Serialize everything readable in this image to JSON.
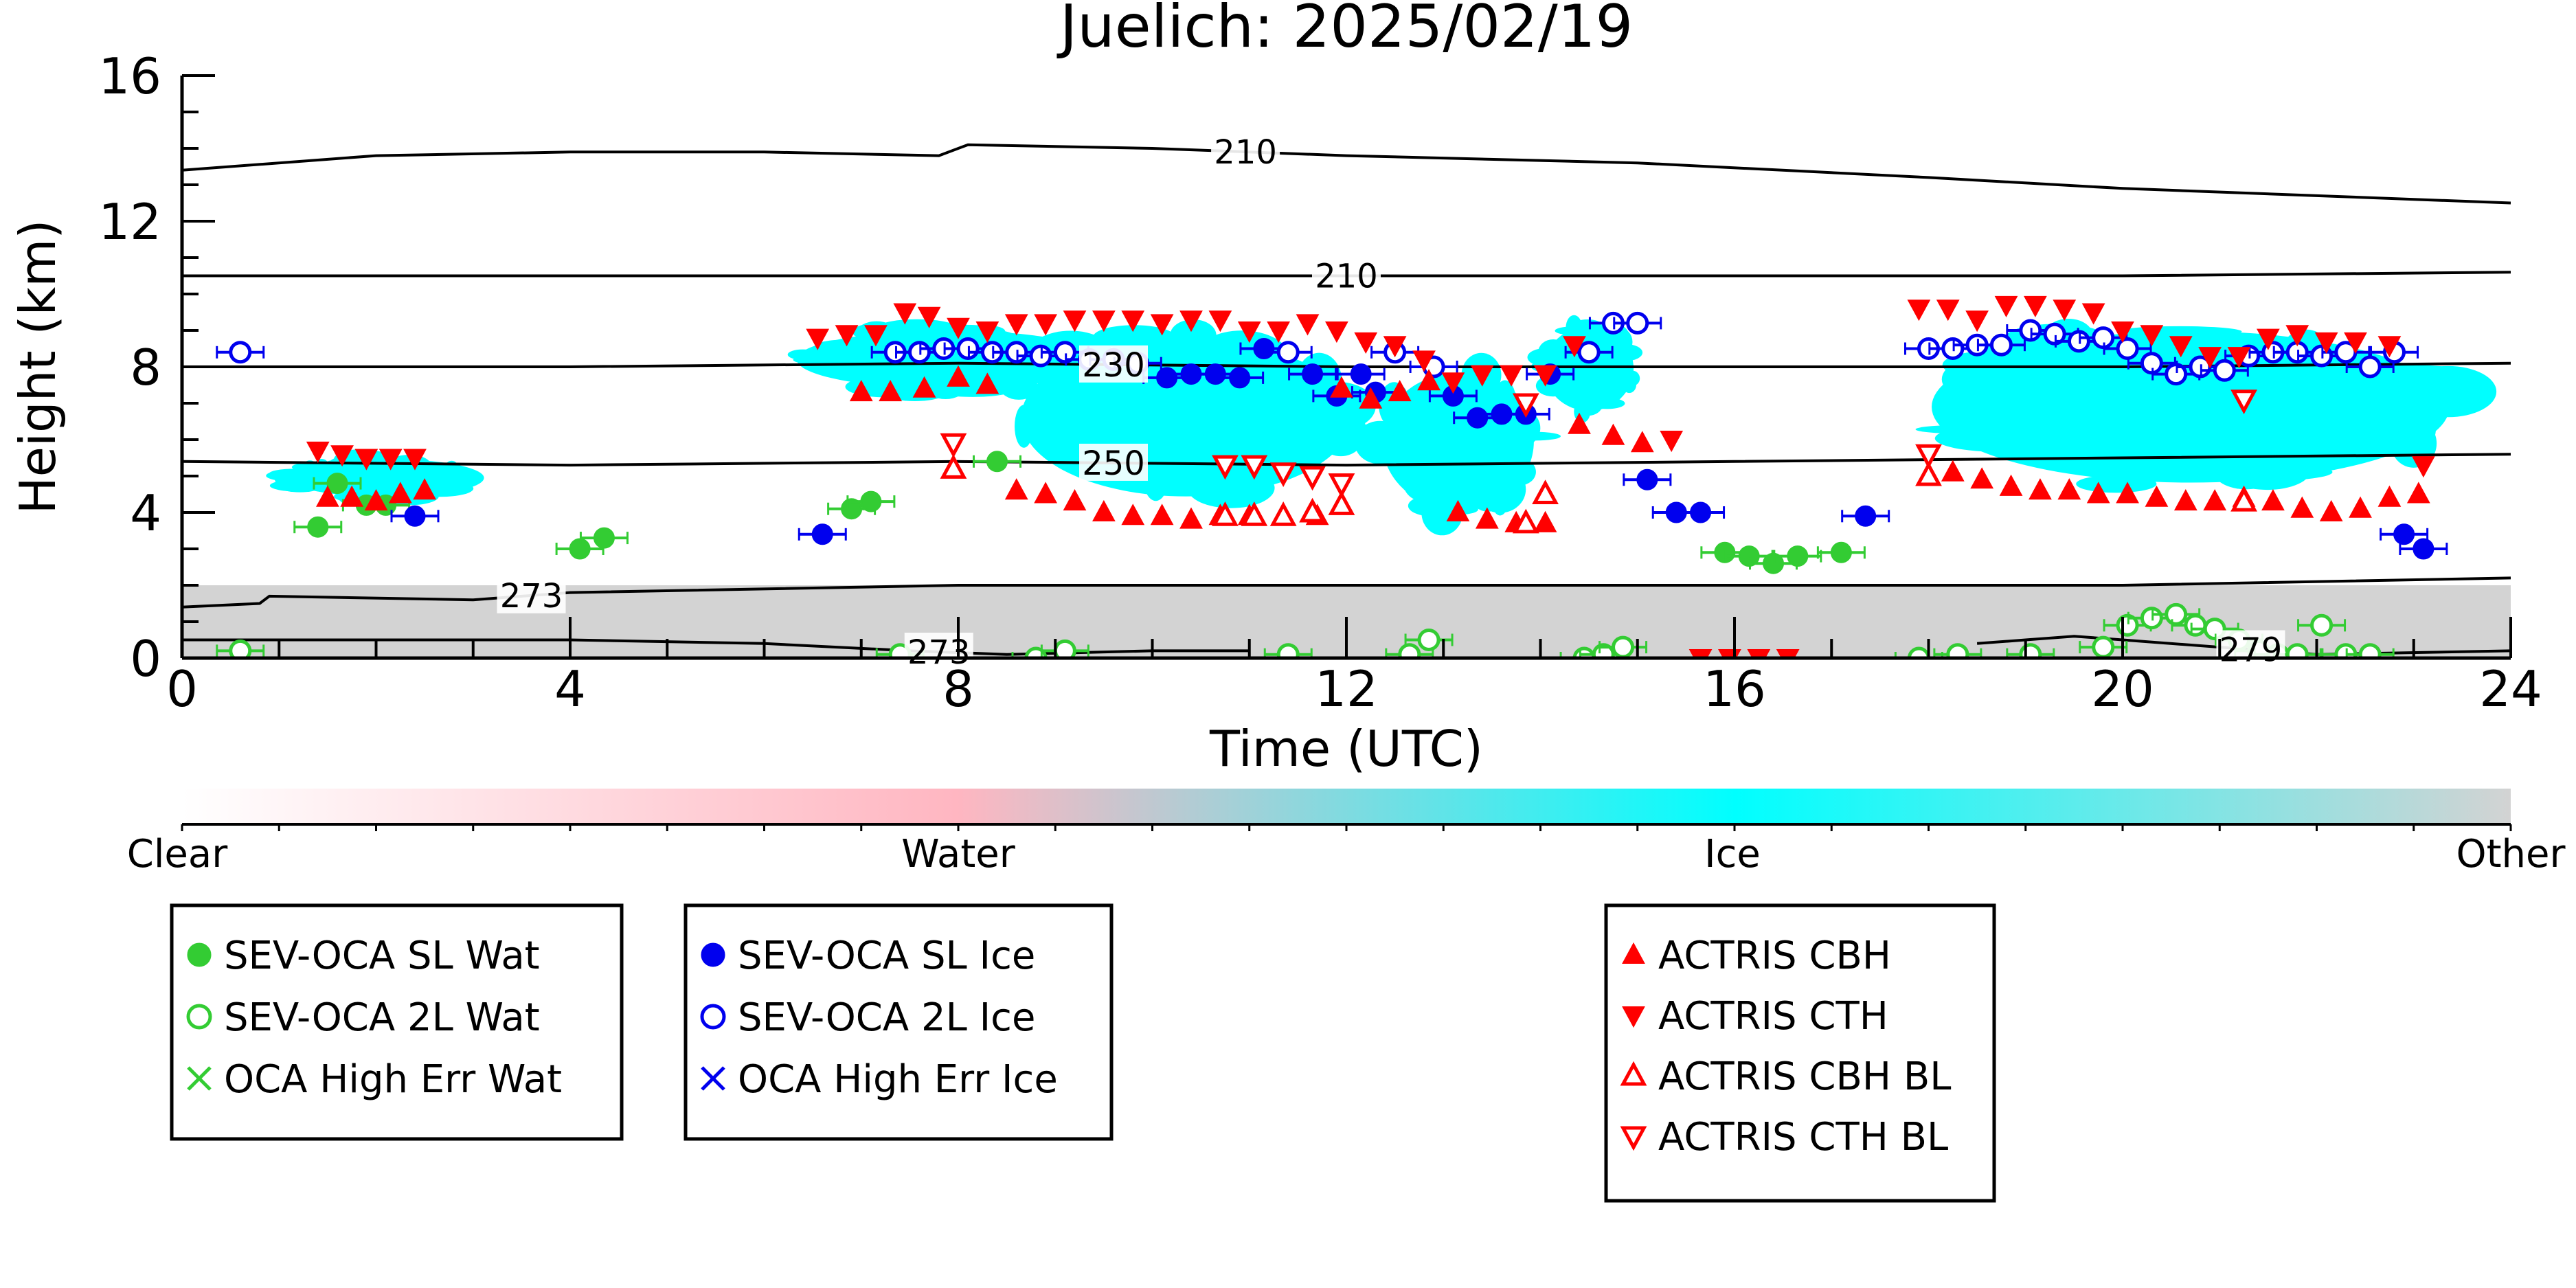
{
  "chart_data": {
    "type": "scatter",
    "title": "Juelich: 2025/02/19",
    "xlabel": "Time (UTC)",
    "ylabel": "Height (km)",
    "xlim": [
      0,
      24
    ],
    "ylim": [
      0,
      16
    ],
    "x_ticks": [
      0,
      4,
      8,
      12,
      16,
      20,
      24
    ],
    "y_ticks": [
      0,
      4,
      8,
      12,
      16
    ],
    "background_classification": {
      "colorbar_labels": [
        "Clear",
        "Water",
        "Ice",
        "Other"
      ],
      "colors": {
        "clear": "#ffffff",
        "water": "#ffb6c1",
        "ice": "#00ffff",
        "other": "#d3d3d3"
      },
      "ice_regions": [
        {
          "x": [
            1.0,
            3.2
          ],
          "y": [
            4.3,
            5.6
          ]
        },
        {
          "x": [
            6.2,
            9.6
          ],
          "y": [
            7.2,
            9.2
          ]
        },
        {
          "x": [
            8.5,
            12.2
          ],
          "y": [
            3.9,
            9.3
          ]
        },
        {
          "x": [
            12.3,
            14.0
          ],
          "y": [
            3.6,
            8.3
          ]
        },
        {
          "x": [
            14.0,
            15.0
          ],
          "y": [
            6.5,
            9.4
          ]
        },
        {
          "x": [
            17.8,
            23.6
          ],
          "y": [
            4.3,
            9.5
          ]
        }
      ],
      "other_region": {
        "x": [
          0,
          24
        ],
        "y": [
          0,
          2.0
        ]
      }
    },
    "temperature_contours": [
      {
        "label": "210",
        "x": [
          0,
          2,
          4,
          6,
          7.8,
          8.1,
          10,
          12,
          15,
          18,
          20,
          22,
          24
        ],
        "y": [
          13.4,
          13.8,
          13.9,
          13.9,
          13.8,
          14.1,
          14.0,
          13.8,
          13.6,
          13.2,
          12.9,
          12.7,
          12.5
        ]
      },
      {
        "label": "210",
        "x": [
          0,
          6,
          12,
          16,
          20,
          24
        ],
        "y": [
          10.5,
          10.5,
          10.5,
          10.5,
          10.5,
          10.6
        ]
      },
      {
        "label": "230",
        "x": [
          0,
          4,
          8,
          12,
          16,
          20,
          24
        ],
        "y": [
          8.0,
          8.0,
          8.1,
          8.0,
          8.0,
          8.0,
          8.1
        ]
      },
      {
        "label": "250",
        "x": [
          0,
          4,
          8,
          12,
          16,
          20,
          24
        ],
        "y": [
          5.4,
          5.3,
          5.4,
          5.3,
          5.4,
          5.5,
          5.6
        ]
      },
      {
        "label": "273",
        "x": [
          0,
          0.8,
          0.9,
          3.0,
          4.0,
          8.0,
          12.0,
          16.0,
          20.0,
          24.0
        ],
        "y": [
          1.4,
          1.5,
          1.7,
          1.6,
          1.8,
          2.0,
          2.0,
          2.0,
          2.0,
          2.2
        ]
      },
      {
        "label": "273",
        "x": [
          0,
          4,
          6,
          7.5,
          8.5,
          10,
          11
        ],
        "y": [
          0.5,
          0.5,
          0.4,
          0.2,
          0.1,
          0.2,
          0.2
        ]
      },
      {
        "label": "279",
        "x": [
          18.5,
          19.0,
          19.5,
          20.0,
          21.0,
          22.0,
          24.0
        ],
        "y": [
          0.4,
          0.5,
          0.6,
          0.5,
          0.3,
          0.1,
          0.2
        ]
      }
    ],
    "series": [
      {
        "name": "SEV-OCA SL Wat",
        "marker": "circle-filled",
        "color": "#33cc33",
        "x": [
          1.4,
          1.6,
          1.9,
          2.1,
          4.1,
          4.35,
          6.9,
          7.1,
          8.4,
          15.9,
          16.15,
          16.4,
          16.65,
          17.1
        ],
        "y": [
          3.6,
          4.8,
          4.2,
          4.2,
          3.0,
          3.3,
          4.1,
          4.3,
          5.4,
          2.9,
          2.8,
          2.6,
          2.8,
          2.9
        ]
      },
      {
        "name": "SEV-OCA 2L Wat",
        "marker": "circle-open",
        "color": "#33cc33",
        "x": [
          0.6,
          7.4,
          8.8,
          9.1,
          11.4,
          12.65,
          12.85,
          14.45,
          14.65,
          14.85,
          17.9,
          18.3,
          19.05,
          19.8,
          20.05,
          20.3,
          20.55,
          20.75,
          20.95,
          21.2,
          21.4,
          21.6,
          21.8,
          22.05,
          22.3,
          22.55
        ],
        "y": [
          0.2,
          0.1,
          0.0,
          0.2,
          0.1,
          0.1,
          0.5,
          0.0,
          0.1,
          0.3,
          0.0,
          0.1,
          0.1,
          0.3,
          0.9,
          1.1,
          1.2,
          0.9,
          0.8,
          0.5,
          0.2,
          0.1,
          0.1,
          0.9,
          0.1,
          0.1
        ]
      },
      {
        "name": "OCA High Err Wat",
        "marker": "x",
        "color": "#33cc33",
        "x": [],
        "y": []
      },
      {
        "name": "SEV-OCA SL Ice",
        "marker": "circle-filled",
        "color": "#0000ee",
        "x": [
          2.4,
          6.6,
          10.15,
          10.4,
          10.65,
          10.9,
          11.15,
          11.65,
          11.9,
          12.15,
          12.3,
          13.1,
          13.35,
          13.6,
          13.85,
          14.1,
          15.1,
          15.4,
          15.65,
          17.35,
          22.9,
          23.1
        ],
        "y": [
          3.9,
          3.4,
          7.7,
          7.8,
          7.8,
          7.7,
          8.5,
          7.8,
          7.2,
          7.8,
          7.3,
          7.2,
          6.6,
          6.7,
          6.7,
          7.8,
          4.9,
          4.0,
          4.0,
          3.9,
          3.4,
          3.0
        ]
      },
      {
        "name": "SEV-OCA 2L Ice",
        "marker": "circle-open",
        "color": "#0000ee",
        "x": [
          0.6,
          7.35,
          7.6,
          7.85,
          8.1,
          8.35,
          8.6,
          8.85,
          9.1,
          9.35,
          9.6,
          9.85,
          11.4,
          12.5,
          12.9,
          14.5,
          14.75,
          15.0,
          18.0,
          18.25,
          18.5,
          18.75,
          19.05,
          19.3,
          19.55,
          19.8,
          20.05,
          20.3,
          20.55,
          20.8,
          21.05,
          21.3,
          21.55,
          21.8,
          22.05,
          22.3,
          22.55,
          22.8
        ],
        "y": [
          8.4,
          8.4,
          8.4,
          8.5,
          8.5,
          8.4,
          8.4,
          8.3,
          8.4,
          8.2,
          8.2,
          8.1,
          8.4,
          8.4,
          8.0,
          8.4,
          9.2,
          9.2,
          8.5,
          8.5,
          8.6,
          8.6,
          9.0,
          8.9,
          8.7,
          8.8,
          8.5,
          8.1,
          7.8,
          8.0,
          7.9,
          8.3,
          8.4,
          8.4,
          8.3,
          8.4,
          8.0,
          8.4
        ]
      },
      {
        "name": "OCA High Err Ice",
        "marker": "x",
        "color": "#0000ee",
        "x": [],
        "y": []
      },
      {
        "name": "ACTRIS CBH",
        "marker": "triangle-up-filled",
        "color": "#ff0000",
        "x": [
          1.5,
          1.75,
          2.0,
          2.25,
          2.5,
          7.0,
          7.3,
          7.65,
          8.0,
          8.3,
          8.6,
          8.9,
          9.2,
          9.5,
          9.8,
          10.1,
          10.4,
          10.7,
          11.0,
          11.35,
          11.7,
          11.95,
          12.25,
          12.55,
          12.85,
          13.15,
          13.45,
          13.75,
          14.05,
          14.4,
          14.75,
          15.05,
          18.25,
          18.55,
          18.85,
          19.15,
          19.45,
          19.75,
          20.05,
          20.35,
          20.65,
          20.95,
          21.25,
          21.55,
          21.85,
          22.15,
          22.45,
          22.75,
          23.05
        ],
        "y": [
          4.4,
          4.4,
          4.3,
          4.5,
          4.6,
          7.3,
          7.3,
          7.4,
          7.7,
          7.5,
          4.6,
          4.5,
          4.3,
          4.0,
          3.9,
          3.9,
          3.8,
          3.9,
          3.9,
          3.9,
          3.9,
          7.4,
          7.1,
          7.3,
          7.6,
          4.0,
          3.8,
          3.7,
          3.7,
          6.4,
          6.1,
          5.9,
          5.1,
          4.9,
          4.7,
          4.6,
          4.6,
          4.5,
          4.5,
          4.4,
          4.3,
          4.3,
          4.4,
          4.3,
          4.1,
          4.0,
          4.1,
          4.4,
          4.5
        ]
      },
      {
        "name": "ACTRIS CTH",
        "marker": "triangle-down-filled",
        "color": "#ff0000",
        "x": [
          1.4,
          1.65,
          1.9,
          2.15,
          2.4,
          6.55,
          6.85,
          7.15,
          7.45,
          7.7,
          8.0,
          8.3,
          8.6,
          8.9,
          9.2,
          9.5,
          9.8,
          10.1,
          10.4,
          10.7,
          11.0,
          11.3,
          11.6,
          11.9,
          12.2,
          12.5,
          12.8,
          13.1,
          13.4,
          13.7,
          14.05,
          14.35,
          15.35,
          15.65,
          15.95,
          16.25,
          16.55,
          17.9,
          18.2,
          18.5,
          18.8,
          19.1,
          19.4,
          19.7,
          20.0,
          20.3,
          20.6,
          20.9,
          21.2,
          21.5,
          21.8,
          22.1,
          22.4,
          22.75,
          23.1
        ],
        "y": [
          5.7,
          5.6,
          5.5,
          5.5,
          5.5,
          8.8,
          8.9,
          8.9,
          9.5,
          9.4,
          9.1,
          9.0,
          9.2,
          9.2,
          9.3,
          9.3,
          9.3,
          9.2,
          9.3,
          9.3,
          9.0,
          9.0,
          9.2,
          9.0,
          8.7,
          8.6,
          8.2,
          7.6,
          7.8,
          7.8,
          7.8,
          8.6,
          6.0,
          0.0,
          0.0,
          0.0,
          0.0,
          9.6,
          9.6,
          9.3,
          9.7,
          9.7,
          9.6,
          9.5,
          9.0,
          8.9,
          8.6,
          8.3,
          8.3,
          8.8,
          8.9,
          8.7,
          8.7,
          8.6,
          5.3
        ]
      },
      {
        "name": "ACTRIS CBH BL",
        "marker": "triangle-up-open",
        "color": "#ff0000",
        "x": [
          7.95,
          10.75,
          11.05,
          11.35,
          11.65,
          11.95,
          13.85,
          14.05,
          18.0,
          21.25
        ],
        "y": [
          5.2,
          3.9,
          3.9,
          3.9,
          4.0,
          4.2,
          3.7,
          4.5,
          5.0,
          4.3
        ]
      },
      {
        "name": "ACTRIS CTH BL",
        "marker": "triangle-down-open",
        "color": "#ff0000",
        "x": [
          7.95,
          10.75,
          11.05,
          11.35,
          11.65,
          11.95,
          13.85,
          18.0,
          21.25
        ],
        "y": [
          5.9,
          5.3,
          5.3,
          5.1,
          5.0,
          4.8,
          7.0,
          5.6,
          7.1
        ]
      }
    ],
    "legend": [
      {
        "placement": "bottom-left",
        "entries": [
          "SEV-OCA SL Wat",
          "SEV-OCA 2L Wat",
          "OCA High Err Wat"
        ]
      },
      {
        "placement": "bottom-center-left",
        "entries": [
          "SEV-OCA SL Ice",
          "SEV-OCA 2L Ice",
          "OCA High Err Ice"
        ]
      },
      {
        "placement": "bottom-center-right",
        "entries": [
          "ACTRIS CBH",
          "ACTRIS CTH",
          "ACTRIS CBH BL",
          "ACTRIS CTH BL"
        ]
      }
    ],
    "grid": false
  }
}
